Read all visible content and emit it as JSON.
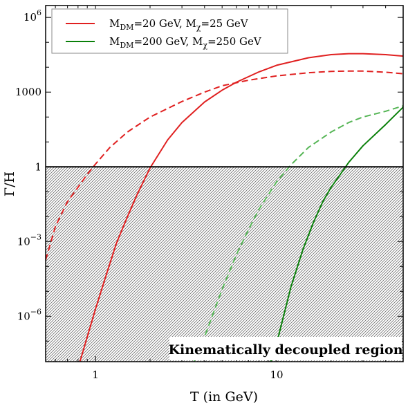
{
  "chart_data": {
    "type": "line",
    "xlabel": "T (in GeV)",
    "ylabel": "Γ/H",
    "x_scale": "log",
    "y_scale": "log",
    "xlim": [
      0.53,
      50
    ],
    "ylim": [
      1.5e-08,
      3000000.0
    ],
    "x_ticks": [
      {
        "value": 1,
        "label": "1"
      },
      {
        "value": 10,
        "label": "10"
      }
    ],
    "y_ticks": [
      {
        "value": 1e-06,
        "base": "10",
        "exp": "−6",
        "label": ""
      },
      {
        "value": 0.001,
        "base": "10",
        "exp": "−3",
        "label": ""
      },
      {
        "value": 1,
        "base": "",
        "exp": "",
        "label": "1"
      },
      {
        "value": 1000,
        "base": "",
        "exp": "",
        "label": "1000"
      },
      {
        "value": 1000000.0,
        "base": "10",
        "exp": "6",
        "label": ""
      }
    ],
    "legend": {
      "position": "top-left",
      "entries": [
        {
          "text1": "M",
          "sub1": "DM",
          "text2": "=20 GeV, M",
          "sub2": "χ",
          "text3": "=25 GeV",
          "color": "#e02020"
        },
        {
          "text1": "M",
          "sub1": "DM",
          "text2": "=200 GeV, M",
          "sub2": "χ",
          "text3": "=250 GeV",
          "color": "#0a800a"
        }
      ]
    },
    "reference_line": {
      "y": 1
    },
    "shaded_region": {
      "y_max": 1,
      "label": "Kinematically decoupled region"
    },
    "series": [
      {
        "legend_index": 0,
        "color": "#e02020",
        "style": "solid",
        "x": [
          0.82,
          0.9,
          1.0,
          1.15,
          1.3,
          1.5,
          1.7,
          2.0,
          2.5,
          3.0,
          4.0,
          5.0,
          6.0,
          8.0,
          10.0,
          15.0,
          20.0,
          25.0,
          30.0,
          40.0,
          50.0
        ],
        "y": [
          1.5e-08,
          1.5e-07,
          2e-06,
          5e-05,
          0.0008,
          0.01,
          0.08,
          0.9,
          12,
          60,
          400,
          1200,
          2500,
          6500,
          12000,
          24000,
          32000,
          35000,
          35000,
          32000,
          28000
        ]
      },
      {
        "legend_index": 0,
        "color": "#e02020",
        "style": "dashed",
        "x": [
          0.53,
          0.6,
          0.7,
          0.8,
          0.9,
          1.0,
          1.2,
          1.5,
          2.0,
          2.5,
          3.0,
          4.0,
          5.0,
          7.0,
          10.0,
          15.0,
          20.0,
          25.0,
          30.0,
          40.0,
          50.0
        ],
        "y": [
          0.00018,
          0.004,
          0.04,
          0.15,
          0.5,
          1.3,
          6,
          25,
          100,
          220,
          420,
          1000,
          1800,
          3000,
          4500,
          6000,
          6800,
          7000,
          7000,
          6300,
          5500
        ]
      },
      {
        "legend_index": 1,
        "color": "#55b555",
        "style": "dashed",
        "x": [
          3.5,
          4.0,
          5.0,
          6.0,
          7.0,
          8.0,
          10.0,
          12.0,
          15.0,
          20.0,
          25.0,
          30.0,
          40.0,
          50.0
        ],
        "y": [
          1.5e-08,
          1.5e-07,
          1.2e-05,
          0.0003,
          0.003,
          0.02,
          0.25,
          1.2,
          6,
          25,
          60,
          100,
          170,
          280
        ]
      },
      {
        "legend_index": 1,
        "color": "#0a800a",
        "style": "solid",
        "x": [
          9.3,
          10.0,
          12.0,
          14.0,
          16.0,
          18.0,
          20.0,
          22.0,
          25.0,
          30.0,
          40.0,
          50.0
        ],
        "y": [
          1.5e-08,
          8e-08,
          1.5e-05,
          0.0005,
          0.006,
          0.04,
          0.15,
          0.4,
          1.5,
          7,
          50,
          250
        ]
      }
    ]
  }
}
